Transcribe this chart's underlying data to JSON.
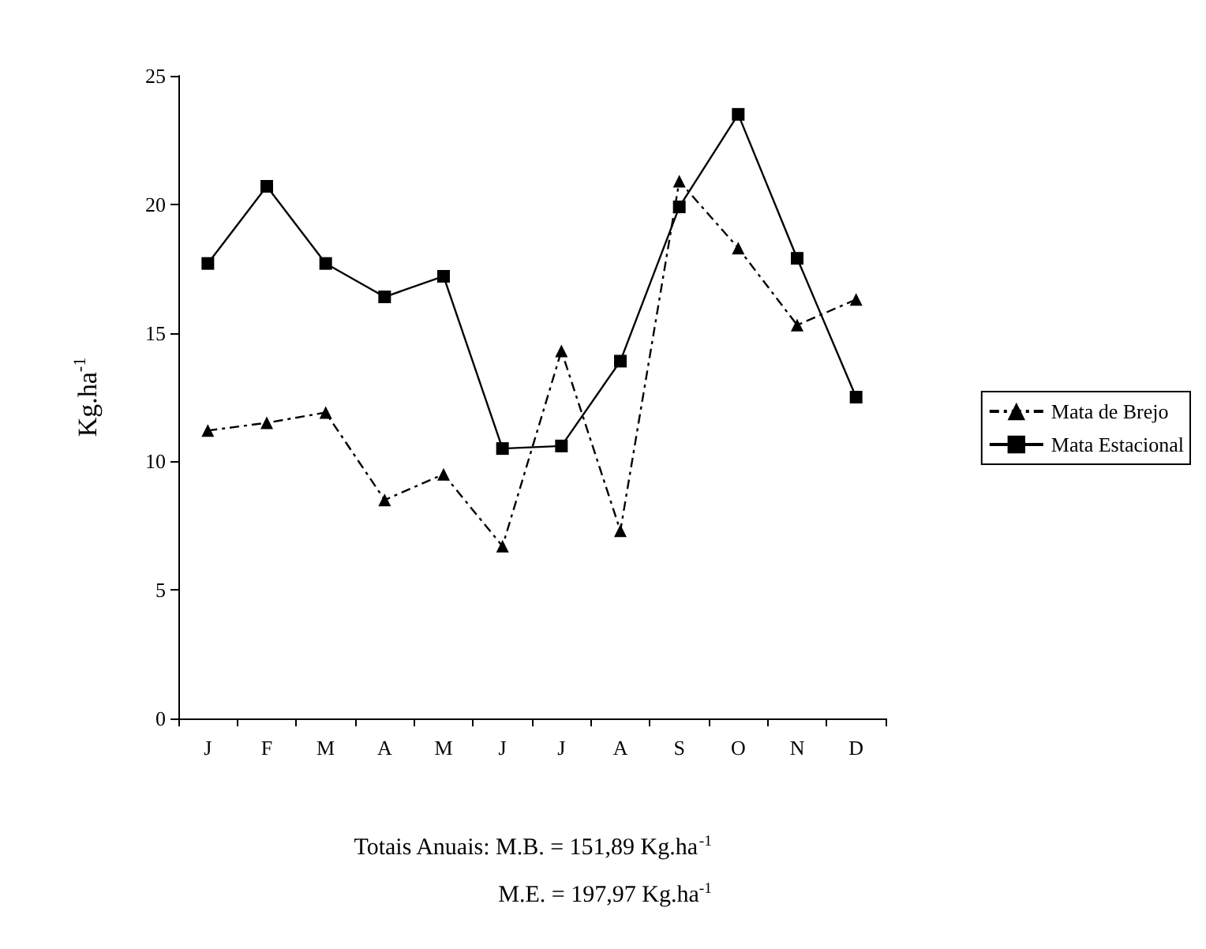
{
  "chart_data": {
    "type": "line",
    "ylabel": "Kg.ha$^{-1}$",
    "categories": [
      "J",
      "F",
      "M",
      "A",
      "M",
      "J",
      "J",
      "A",
      "S",
      "O",
      "N",
      "D"
    ],
    "series": [
      {
        "name": "Mata de Brejo",
        "color": "#000000",
        "marker": "triangle",
        "line_style": "dashed",
        "values": [
          11.2,
          11.5,
          11.9,
          8.5,
          9.5,
          6.7,
          14.3,
          7.3,
          20.9,
          18.3,
          15.3,
          16.3
        ]
      },
      {
        "name": "Mata Estacional",
        "color": "#000000",
        "marker": "square",
        "line_style": "solid",
        "values": [
          17.7,
          20.7,
          17.7,
          16.4,
          17.2,
          10.5,
          10.6,
          13.9,
          19.9,
          23.5,
          17.9,
          12.5
        ]
      }
    ],
    "ylim": [
      0,
      25
    ],
    "yticks": [
      0,
      5,
      10,
      15,
      20,
      25
    ],
    "grid": false,
    "legend": "right",
    "annotations": [
      "Totais Anuais: M.B. = 151,89 Kg.ha$^{-1}$",
      "M.E. = 197,97 Kg.ha$^{-1}$"
    ]
  }
}
